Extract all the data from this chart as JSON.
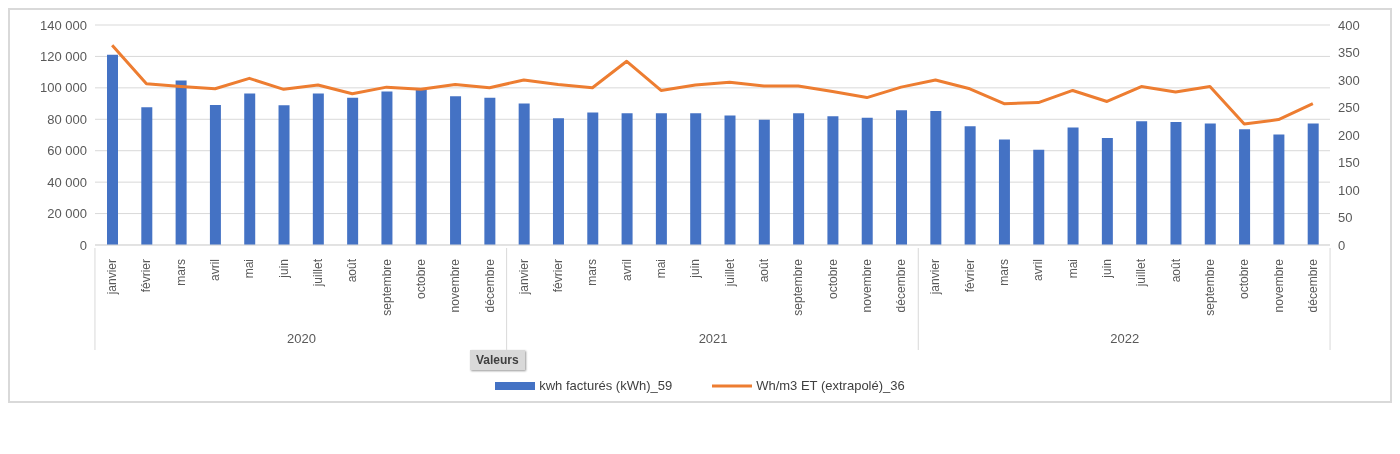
{
  "chart_data": {
    "type": "bar",
    "categories": [
      "janvier",
      "février",
      "mars",
      "avril",
      "mai",
      "juin",
      "juillet",
      "août",
      "septembre",
      "octobre",
      "novembre",
      "décembre",
      "janvier",
      "février",
      "mars",
      "avril",
      "mai",
      "juin",
      "juillet",
      "août",
      "septembre",
      "octobre",
      "novembre",
      "décembre",
      "janvier",
      "février",
      "mars",
      "avril",
      "mai",
      "juin",
      "juillet",
      "août",
      "septembre",
      "octobre",
      "novembre",
      "décembre"
    ],
    "series": [
      {
        "name": "kwh facturés (kWh)_59",
        "color": "#4472c4",
        "values": [
          121000,
          87600,
          104700,
          89100,
          96400,
          89000,
          96400,
          93700,
          97700,
          99000,
          94600,
          93700,
          90000,
          80600,
          84300,
          83900,
          83900,
          83900,
          82400,
          79700,
          83900,
          81900,
          81000,
          85800,
          85200,
          75500,
          67200,
          60600,
          74800,
          68100,
          78800,
          78200,
          77300,
          73700,
          70300,
          77300
        ]
      },
      {
        "name": "Wh/m3 ET (extrapolé)_36",
        "type": "line",
        "axis": "y2",
        "color": "#ed7d31",
        "values": [
          363,
          293,
          288,
          284,
          303,
          283,
          291,
          275,
          287,
          283,
          292,
          286,
          300,
          292,
          286,
          334,
          281,
          291,
          296,
          289,
          289,
          279,
          268,
          287,
          300,
          284,
          257,
          259,
          281,
          261,
          288,
          278,
          288,
          220,
          228,
          257
        ]
      }
    ],
    "ylim": [
      0,
      140000
    ],
    "yticks": [
      {
        "value": 0,
        "label": "0"
      },
      {
        "value": 20000,
        "label": "20 000"
      },
      {
        "value": 40000,
        "label": "40 000"
      },
      {
        "value": 60000,
        "label": "60 000"
      },
      {
        "value": 80000,
        "label": "80 000"
      },
      {
        "value": 100000,
        "label": "100 000"
      },
      {
        "value": 120000,
        "label": "120 000"
      },
      {
        "value": 140000,
        "label": "140 000"
      }
    ],
    "y2lim": [
      0,
      400
    ],
    "y2ticks": [
      0,
      50,
      100,
      150,
      200,
      250,
      300,
      350,
      400
    ],
    "annotations": [
      "2020",
      "2021",
      "2022"
    ],
    "legend_title": "Valeurs",
    "legend": "bottom",
    "grid": "y",
    "marker": "none",
    "line_style": "solid"
  }
}
